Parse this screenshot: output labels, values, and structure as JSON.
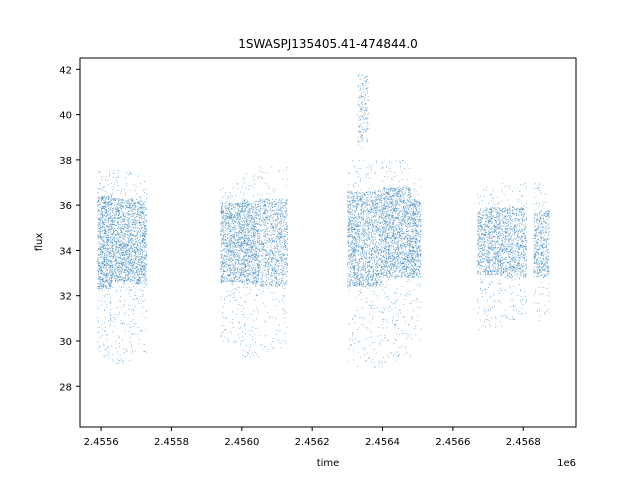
{
  "chart_data": {
    "type": "scatter",
    "title": "1SWASPJ135405.41-474844.0",
    "xlabel": "time",
    "ylabel": "flux",
    "x_offset_label": "1e6",
    "xlim": [
      2455540,
      2456950
    ],
    "ylim": [
      26.2,
      42.5
    ],
    "x_ticks": [
      2455600,
      2455800,
      2456000,
      2456200,
      2456400,
      2456600,
      2456800
    ],
    "x_tick_labels": [
      "2.4556",
      "2.4558",
      "2.4560",
      "2.4562",
      "2.4564",
      "2.4566",
      "2.4568"
    ],
    "y_ticks": [
      28,
      30,
      32,
      34,
      36,
      38,
      40,
      42
    ],
    "y_tick_labels": [
      "28",
      "30",
      "32",
      "34",
      "36",
      "38",
      "40",
      "42"
    ],
    "grid": false,
    "marker_color": "#1f77b4",
    "marker": "tiny dots",
    "series": [
      {
        "segments": [
          {
            "x_range": [
              2455590,
              2455630
            ],
            "core_y": [
              32.3,
              36.4
            ],
            "spread_y": [
              29.2,
              37.6
            ],
            "points": 900
          },
          {
            "x_range": [
              2455630,
              2455690
            ],
            "core_y": [
              32.6,
              36.3
            ],
            "spread_y": [
              29.0,
              37.6
            ],
            "points": 1100
          },
          {
            "x_range": [
              2455690,
              2455730
            ],
            "core_y": [
              32.5,
              36.2
            ],
            "spread_y": [
              29.5,
              37.3
            ],
            "points": 700
          },
          {
            "x_range": [
              2455940,
              2456000
            ],
            "core_y": [
              32.6,
              36.1
            ],
            "spread_y": [
              29.8,
              37.0
            ],
            "points": 1000
          },
          {
            "x_range": [
              2456000,
              2456050
            ],
            "core_y": [
              32.5,
              36.2
            ],
            "spread_y": [
              29.2,
              37.5
            ],
            "points": 900
          },
          {
            "x_range": [
              2456050,
              2456130
            ],
            "core_y": [
              32.4,
              36.3
            ],
            "spread_y": [
              29.5,
              37.7
            ],
            "points": 1000
          },
          {
            "x_range": [
              2456330,
              2456360
            ],
            "core_y": [
              38.8,
              41.8
            ],
            "spread_y": [
              38.5,
              42.0
            ],
            "points": 160
          },
          {
            "x_range": [
              2456300,
              2456400
            ],
            "core_y": [
              32.4,
              36.6
            ],
            "spread_y": [
              28.8,
              38.0
            ],
            "points": 1700
          },
          {
            "x_range": [
              2456400,
              2456480
            ],
            "core_y": [
              32.8,
              36.8
            ],
            "spread_y": [
              29.0,
              38.0
            ],
            "points": 1500
          },
          {
            "x_range": [
              2456480,
              2456510
            ],
            "core_y": [
              32.8,
              36.2
            ],
            "spread_y": [
              30.0,
              37.2
            ],
            "points": 500
          },
          {
            "x_range": [
              2456670,
              2456740
            ],
            "core_y": [
              32.9,
              35.9
            ],
            "spread_y": [
              30.5,
              36.9
            ],
            "points": 900
          },
          {
            "x_range": [
              2456740,
              2456810
            ],
            "core_y": [
              32.8,
              35.9
            ],
            "spread_y": [
              30.8,
              37.0
            ],
            "points": 800
          },
          {
            "x_range": [
              2456830,
              2456875
            ],
            "core_y": [
              32.8,
              35.8
            ],
            "spread_y": [
              30.8,
              37.0
            ],
            "points": 500
          }
        ]
      }
    ]
  }
}
